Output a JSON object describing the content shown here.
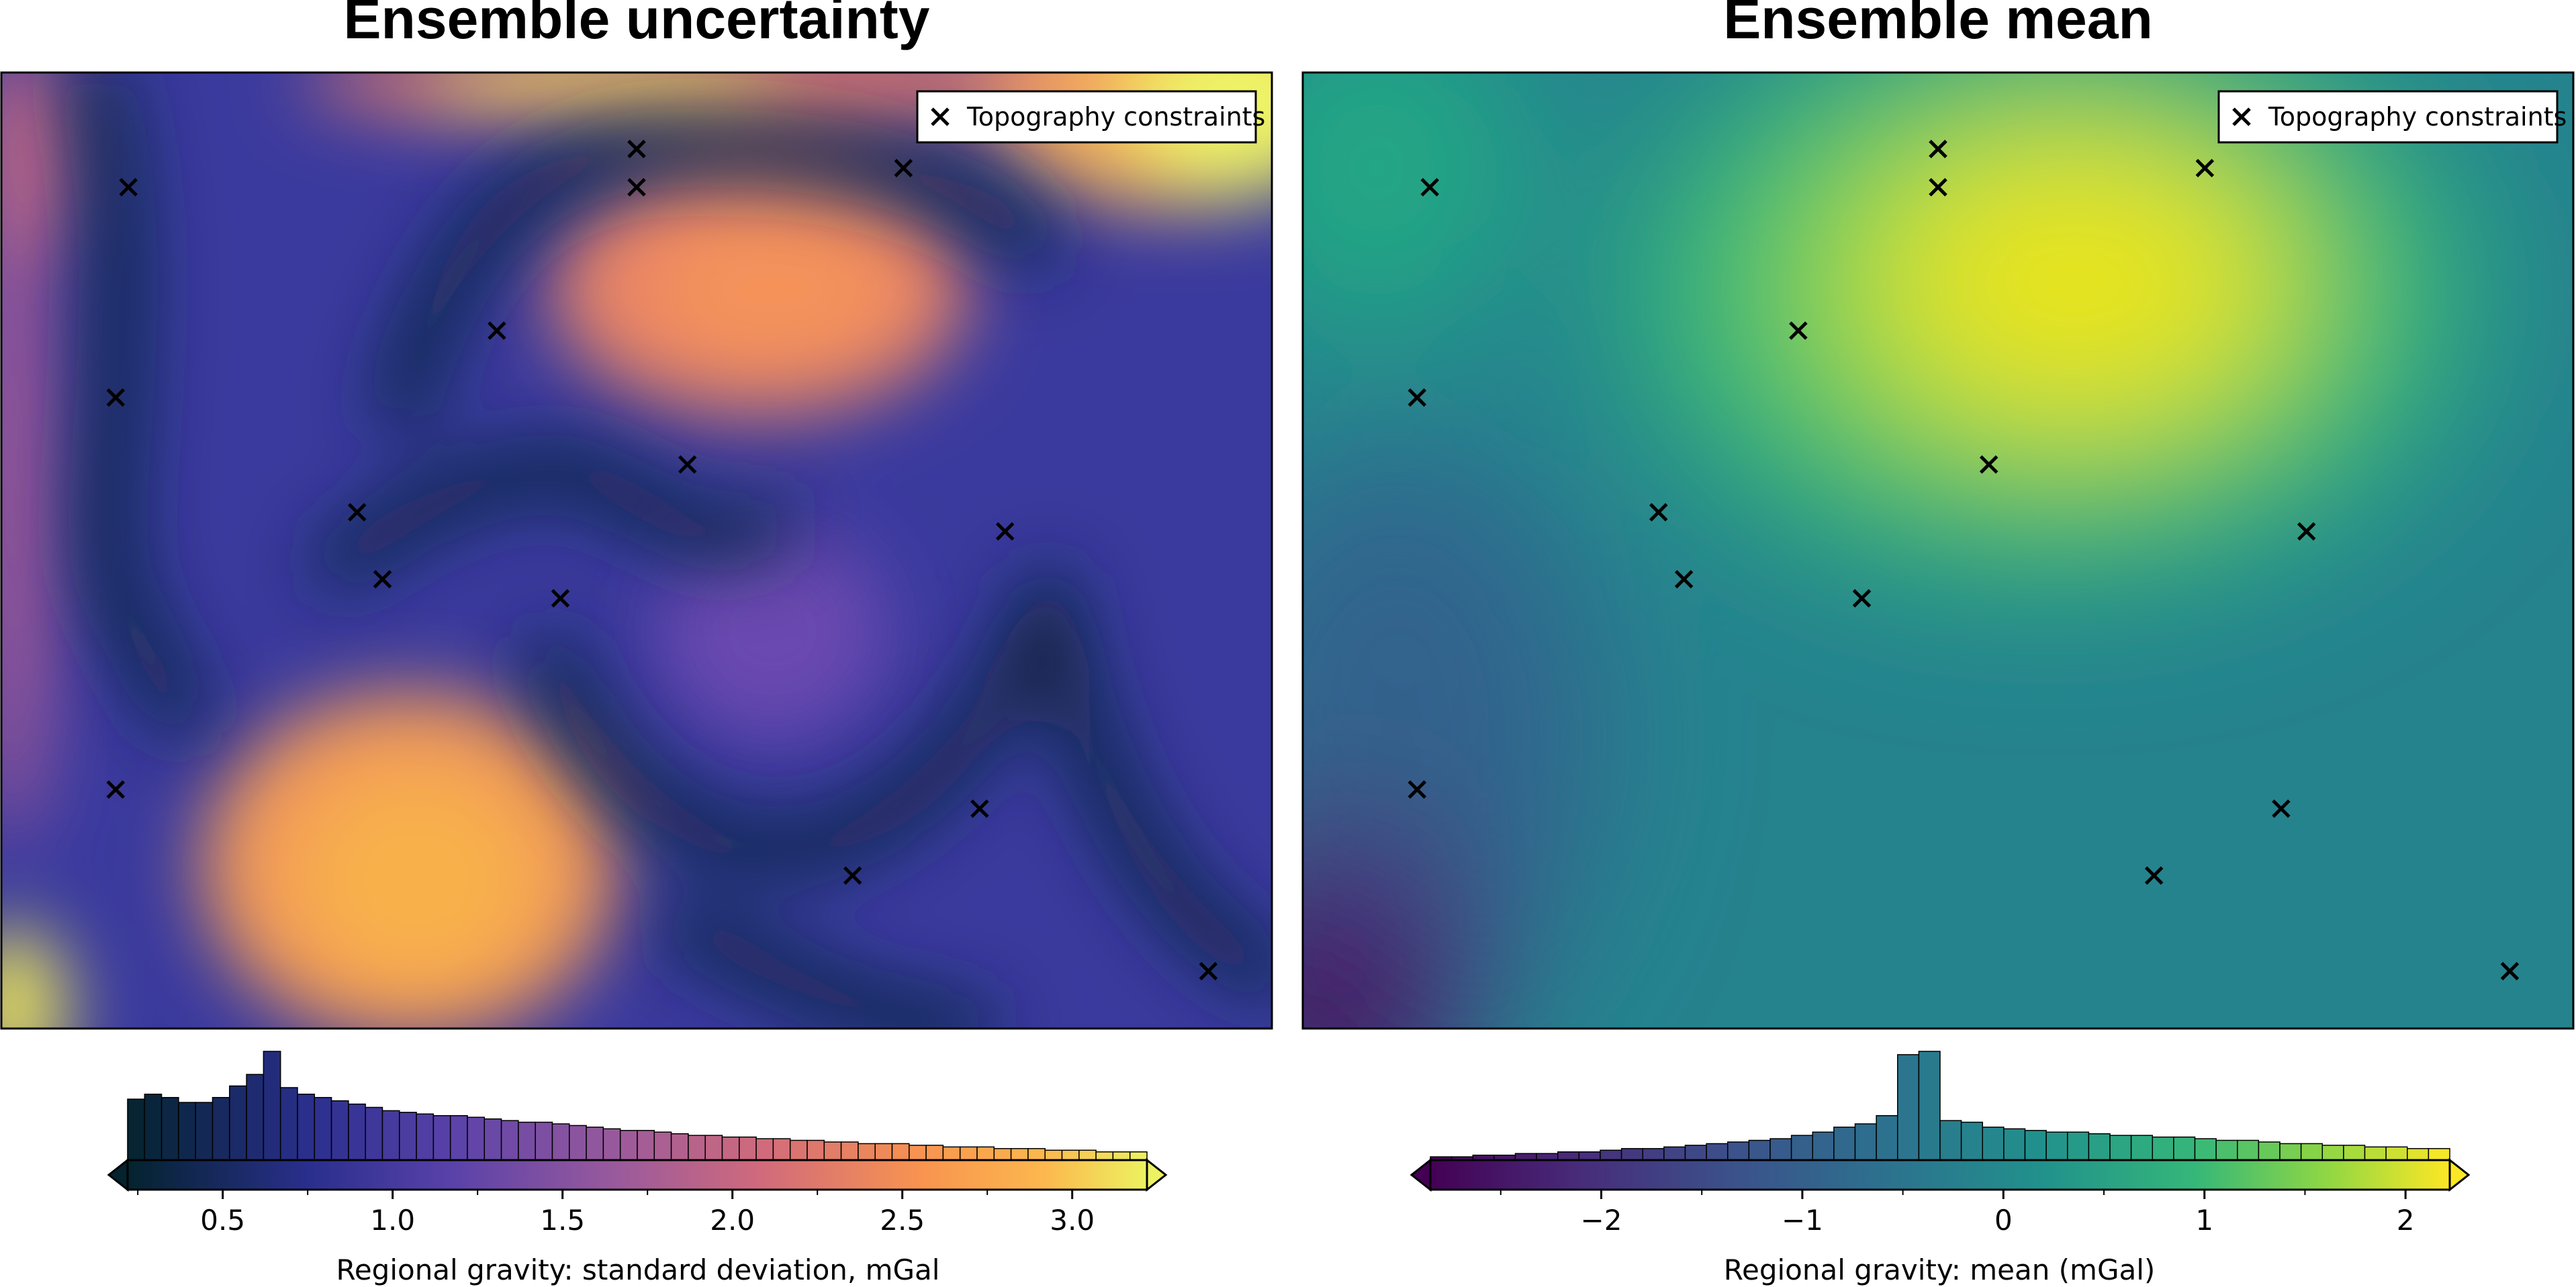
{
  "chart_data": [
    {
      "type": "heatmap",
      "title": "Ensemble uncertainty",
      "colormap": "thermal",
      "legend": {
        "entries": [
          "Topography constraints"
        ],
        "placement": "top-right"
      },
      "points": {
        "name": "Topography constraints",
        "marker": "x",
        "x": [
          0.1,
          0.5,
          0.5,
          0.71,
          0.09,
          0.39,
          0.54,
          0.28,
          0.79,
          0.3,
          0.44,
          0.09,
          0.77,
          0.67,
          0.95
        ],
        "y": [
          0.88,
          0.92,
          0.88,
          0.9,
          0.66,
          0.73,
          0.59,
          0.54,
          0.52,
          0.47,
          0.45,
          0.25,
          0.23,
          0.16,
          0.06
        ]
      },
      "colorbar": {
        "label": "Regional gravity:  standard deviation, mGal",
        "range": [
          0.22,
          3.22
        ],
        "ticks": [
          "0.5",
          "1.0",
          "1.5",
          "2.0",
          "2.5",
          "3.0"
        ],
        "tick_values": [
          0.5,
          1.0,
          1.5,
          2.0,
          2.5,
          3.0
        ],
        "extend": "both"
      },
      "histogram": {
        "bin_edges_range": [
          0.22,
          3.22
        ],
        "counts": [
          37,
          40,
          38,
          35,
          35,
          38,
          45,
          52,
          66,
          44,
          40,
          38,
          36,
          34,
          32,
          30,
          29,
          28,
          27,
          27,
          26,
          25,
          24,
          23,
          23,
          22,
          21,
          20,
          19,
          18,
          18,
          17,
          16,
          15,
          15,
          14,
          14,
          13,
          13,
          12,
          12,
          11,
          11,
          10,
          10,
          10,
          9,
          9,
          8,
          8,
          8,
          7,
          7,
          7,
          6,
          6,
          6,
          5,
          5,
          5
        ]
      }
    },
    {
      "type": "heatmap",
      "title": "Ensemble mean",
      "colormap": "viridis",
      "legend": {
        "entries": [
          "Topography constraints"
        ],
        "placement": "top-right"
      },
      "points": {
        "name": "Topography constraints",
        "marker": "x",
        "x": [
          0.1,
          0.5,
          0.5,
          0.71,
          0.09,
          0.39,
          0.54,
          0.28,
          0.79,
          0.3,
          0.44,
          0.09,
          0.77,
          0.67,
          0.95
        ],
        "y": [
          0.88,
          0.92,
          0.88,
          0.9,
          0.66,
          0.73,
          0.59,
          0.54,
          0.52,
          0.47,
          0.45,
          0.25,
          0.23,
          0.16,
          0.06
        ]
      },
      "colorbar": {
        "label": "Regional gravity:  mean (mGal)",
        "range": [
          -2.85,
          2.22
        ],
        "ticks": [
          "−2",
          "−1",
          "0",
          "1",
          "2"
        ],
        "tick_values": [
          -2,
          -1,
          0,
          1,
          2
        ],
        "extend": "both"
      },
      "histogram": {
        "bin_edges_range": [
          -2.85,
          2.22
        ],
        "counts": [
          2,
          2,
          3,
          3,
          4,
          4,
          5,
          5,
          6,
          7,
          7,
          8,
          9,
          10,
          11,
          12,
          13,
          15,
          17,
          20,
          22,
          27,
          64,
          66,
          24,
          23,
          20,
          19,
          18,
          17,
          17,
          16,
          15,
          15,
          14,
          14,
          13,
          12,
          12,
          11,
          10,
          10,
          9,
          9,
          8,
          8,
          7,
          7
        ]
      }
    }
  ]
}
